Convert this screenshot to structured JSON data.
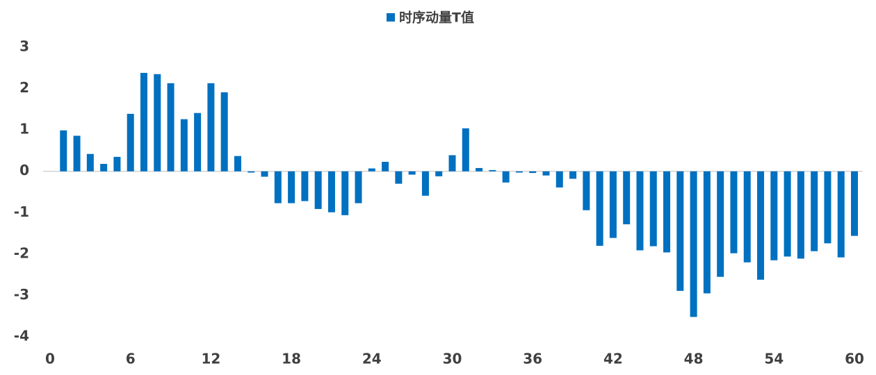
{
  "chart_data": {
    "type": "bar",
    "x": [
      1,
      2,
      3,
      4,
      5,
      6,
      7,
      8,
      9,
      10,
      11,
      12,
      13,
      14,
      15,
      16,
      17,
      18,
      19,
      20,
      21,
      22,
      23,
      24,
      25,
      26,
      27,
      28,
      29,
      30,
      31,
      32,
      33,
      34,
      35,
      36,
      37,
      38,
      39,
      40,
      41,
      42,
      43,
      44,
      45,
      46,
      47,
      48,
      49,
      50,
      51,
      52,
      53,
      54,
      55,
      56,
      57,
      58,
      59,
      60
    ],
    "series": [
      {
        "name": "时序动量T值",
        "color": "#0070c0",
        "values": [
          0.99,
          0.86,
          0.42,
          0.18,
          0.35,
          1.39,
          2.38,
          2.35,
          2.13,
          1.26,
          1.41,
          2.13,
          1.91,
          0.37,
          -0.03,
          -0.13,
          -0.77,
          -0.77,
          -0.72,
          -0.91,
          -0.99,
          -1.06,
          -0.77,
          0.07,
          0.23,
          -0.3,
          -0.08,
          -0.59,
          -0.12,
          0.39,
          1.04,
          0.08,
          0.03,
          -0.27,
          -0.03,
          -0.04,
          -0.1,
          -0.39,
          -0.18,
          -0.94,
          -1.8,
          -1.61,
          -1.28,
          -1.91,
          -1.81,
          -1.96,
          -2.89,
          -3.52,
          -2.95,
          -2.55,
          -1.98,
          -2.2,
          -2.62,
          -2.15,
          -2.06,
          -2.11,
          -1.93,
          -1.74,
          -2.08,
          -1.56
        ]
      }
    ],
    "xlim": [
      0,
      60
    ],
    "xticks": [
      0,
      6,
      12,
      18,
      24,
      30,
      36,
      42,
      48,
      54,
      60
    ],
    "ylim": [
      -4,
      3
    ],
    "yticks": [
      -4,
      -3,
      -2,
      -1,
      0,
      1,
      2,
      3
    ],
    "legend": "top"
  }
}
